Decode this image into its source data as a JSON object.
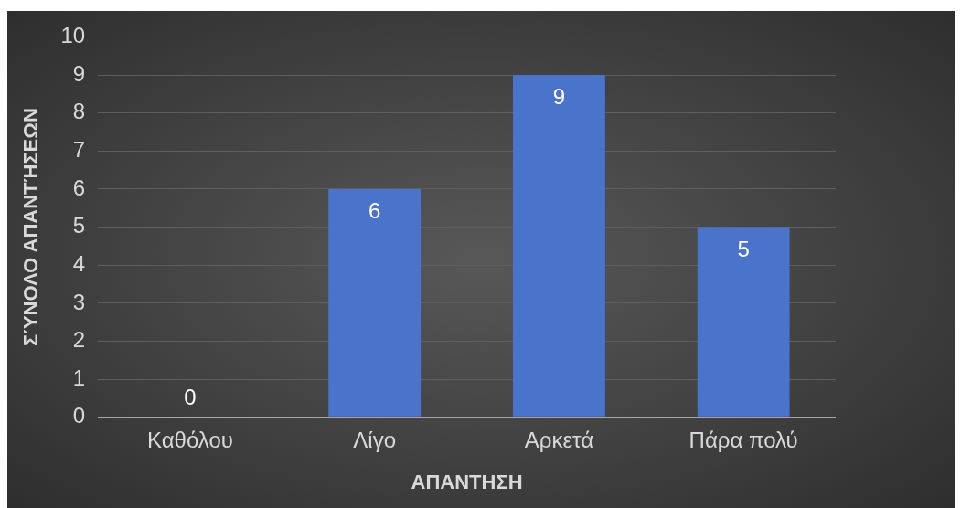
{
  "chart_data": {
    "type": "bar",
    "xlabel": "ΑΠΑΝΤΗΣΗ",
    "ylabel": "ΣΎΝΟΛΟ ΑΠΑΝΤΉΣΕΩΝ",
    "categories": [
      "Καθόλου",
      "Λίγο",
      "Αρκετά",
      "Πάρα πολύ"
    ],
    "values": [
      0,
      6,
      9,
      5
    ],
    "color": "#4a74cc",
    "ylim": [
      0,
      10
    ],
    "yticks": [
      0,
      1,
      2,
      3,
      4,
      5,
      6,
      7,
      8,
      9,
      10
    ],
    "grid": "y",
    "data_labels": true
  }
}
